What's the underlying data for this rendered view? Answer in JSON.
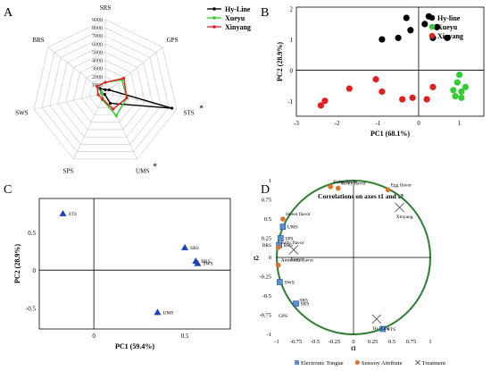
{
  "colors": {
    "hyline": "#000000",
    "xueyu": "#33cc33",
    "xinyang": "#e02020",
    "blue": "#1f3fbf",
    "orange": "#d9722a",
    "sq": "#5b8fd0"
  },
  "chart_data": [
    {
      "panel": "A",
      "type": "radar",
      "axes": [
        "SRS",
        "GPS",
        "STS",
        "UMS",
        "SPS",
        "SWS",
        "BRS"
      ],
      "radial_ticks": [
        "0",
        "1000",
        "2000",
        "3000",
        "4000",
        "5000",
        "6000",
        "7000",
        "8000",
        "9000"
      ],
      "rmax": 9000,
      "marked_axes": {
        "STS": "*",
        "UMS": "*"
      },
      "series": [
        {
          "name": "Hy-Line",
          "color": "#000000",
          "values": [
            400,
            600,
            8400,
            1400,
            200,
            400,
            900
          ]
        },
        {
          "name": "Xueyu",
          "color": "#33cc33",
          "values": [
            1300,
            2600,
            2700,
            3100,
            900,
            400,
            1300
          ]
        },
        {
          "name": "Xinyang",
          "color": "#e02020",
          "values": [
            1300,
            2900,
            2700,
            2200,
            800,
            900,
            1300
          ]
        }
      ]
    },
    {
      "panel": "B",
      "type": "scatter",
      "xlabel": "PC1 (68.1%)",
      "ylabel": "PC2 (28.9%)",
      "xlim": [
        -3,
        1.6
      ],
      "ylim": [
        -1.5,
        2.05
      ],
      "xticks": [
        "-3",
        "-2",
        "-1",
        "0",
        "1"
      ],
      "yticks": [
        "-1",
        "0",
        "1",
        "2"
      ],
      "series": [
        {
          "name": "Hy-line",
          "color": "#000000",
          "points": [
            [
              -0.3,
              1.7
            ],
            [
              0.25,
              1.75
            ],
            [
              -0.2,
              1.3
            ],
            [
              0.15,
              1.5
            ],
            [
              0.45,
              1.4
            ],
            [
              0.7,
              1.05
            ],
            [
              -0.9,
              1.0
            ],
            [
              -0.5,
              1.05
            ],
            [
              0.35,
              1.05
            ]
          ]
        },
        {
          "name": "Xueyu",
          "color": "#33cc33",
          "points": [
            [
              1.0,
              -0.15
            ],
            [
              0.95,
              -0.4
            ],
            [
              1.15,
              -0.55
            ],
            [
              0.85,
              -0.65
            ],
            [
              1.05,
              -0.7
            ],
            [
              0.9,
              -0.85
            ],
            [
              1.05,
              -0.9
            ]
          ]
        },
        {
          "name": "Xinyang",
          "color": "#e02020",
          "points": [
            [
              -1.05,
              -0.3
            ],
            [
              -2.3,
              -1.0
            ],
            [
              -1.7,
              -0.6
            ],
            [
              -0.9,
              -0.7
            ],
            [
              -0.4,
              -0.95
            ],
            [
              -0.15,
              -0.9
            ],
            [
              0.2,
              -0.95
            ],
            [
              0.35,
              -0.55
            ],
            [
              -2.4,
              -1.15
            ]
          ]
        }
      ]
    },
    {
      "panel": "C",
      "type": "scatter",
      "xlabel": "PC1 (59.4%)",
      "ylabel": "PC2 (28.9%)",
      "xlim": [
        -0.3,
        0.75
      ],
      "ylim": [
        -0.78,
        0.95
      ],
      "xticks": [
        "0",
        "0.5"
      ],
      "yticks": [
        "-0.5",
        "0",
        "0.5"
      ],
      "points": [
        {
          "label": "STS",
          "x": -0.17,
          "y": 0.75
        },
        {
          "label": "SRS",
          "x": 0.5,
          "y": 0.3
        },
        {
          "label": "BRS",
          "x": 0.56,
          "y": 0.12
        },
        {
          "label": "SWS",
          "x": 0.57,
          "y": 0.09
        },
        {
          "label": "UMS",
          "x": 0.35,
          "y": -0.56
        }
      ]
    },
    {
      "panel": "D",
      "type": "correlation_circle",
      "title": "Correlations on axes t1 and t2",
      "xlabel": "t1",
      "ylabel": "t2",
      "xticks": [
        "-1",
        "-0.75",
        "-0.5",
        "-0.25",
        "0",
        "0.25",
        "0.5",
        "0.75",
        "1"
      ],
      "yticks": [
        "1",
        "0.75",
        "0.5",
        "0.25",
        "0",
        "-0.25",
        "-0.5",
        "-0.75",
        "-1"
      ],
      "points": [
        {
          "label": "Fishy flavor",
          "kind": "sensory",
          "x": -0.3,
          "y": 0.92
        },
        {
          "label": "Milky flavor",
          "kind": "sensory",
          "x": -0.2,
          "y": 0.9
        },
        {
          "label": "Egg flavor",
          "kind": "sensory",
          "x": 0.45,
          "y": 0.88
        },
        {
          "label": "Sweet flavor",
          "kind": "sensory",
          "x": -0.92,
          "y": 0.5
        },
        {
          "label": "UMS",
          "kind": "tongue",
          "x": -0.92,
          "y": 0.4
        },
        {
          "label": "SPS",
          "kind": "tongue",
          "x": -0.95,
          "y": 0.25
        },
        {
          "label": "BRS",
          "kind": "tongue",
          "x": -0.97,
          "y": 0.16
        },
        {
          "label": "Salty flavor",
          "kind": "sensory",
          "x": -0.98,
          "y": 0.13
        },
        {
          "label": "Ammonia flavor",
          "kind": "sensory",
          "x": -0.98,
          "y": -0.1
        },
        {
          "label": "SWS",
          "kind": "tongue",
          "x": -0.96,
          "y": -0.32
        },
        {
          "label": "SRS",
          "kind": "tongue",
          "x": -0.75,
          "y": -0.6
        },
        {
          "label": "STS",
          "kind": "tongue",
          "x": 0.38,
          "y": -0.93
        },
        {
          "label": "Xinyang",
          "kind": "treatment",
          "x": 0.6,
          "y": 0.65
        },
        {
          "label": "Xueyu",
          "kind": "treatment",
          "x": -0.78,
          "y": 0.1
        },
        {
          "label": "Hy-Line",
          "kind": "treatment",
          "x": 0.3,
          "y": -0.8
        }
      ],
      "tick_labels": {
        "BRS_left": "BRS",
        "SRS_mid": "SRS",
        "GPS": "GPS"
      },
      "legend": [
        {
          "label": "Electronic Tongue",
          "kind": "tongue"
        },
        {
          "label": "Sensory Attribute",
          "kind": "sensory"
        },
        {
          "label": "Treatment",
          "kind": "treatment"
        }
      ]
    }
  ],
  "panels": {
    "a": "A",
    "b": "B",
    "c": "C",
    "d": "D"
  }
}
